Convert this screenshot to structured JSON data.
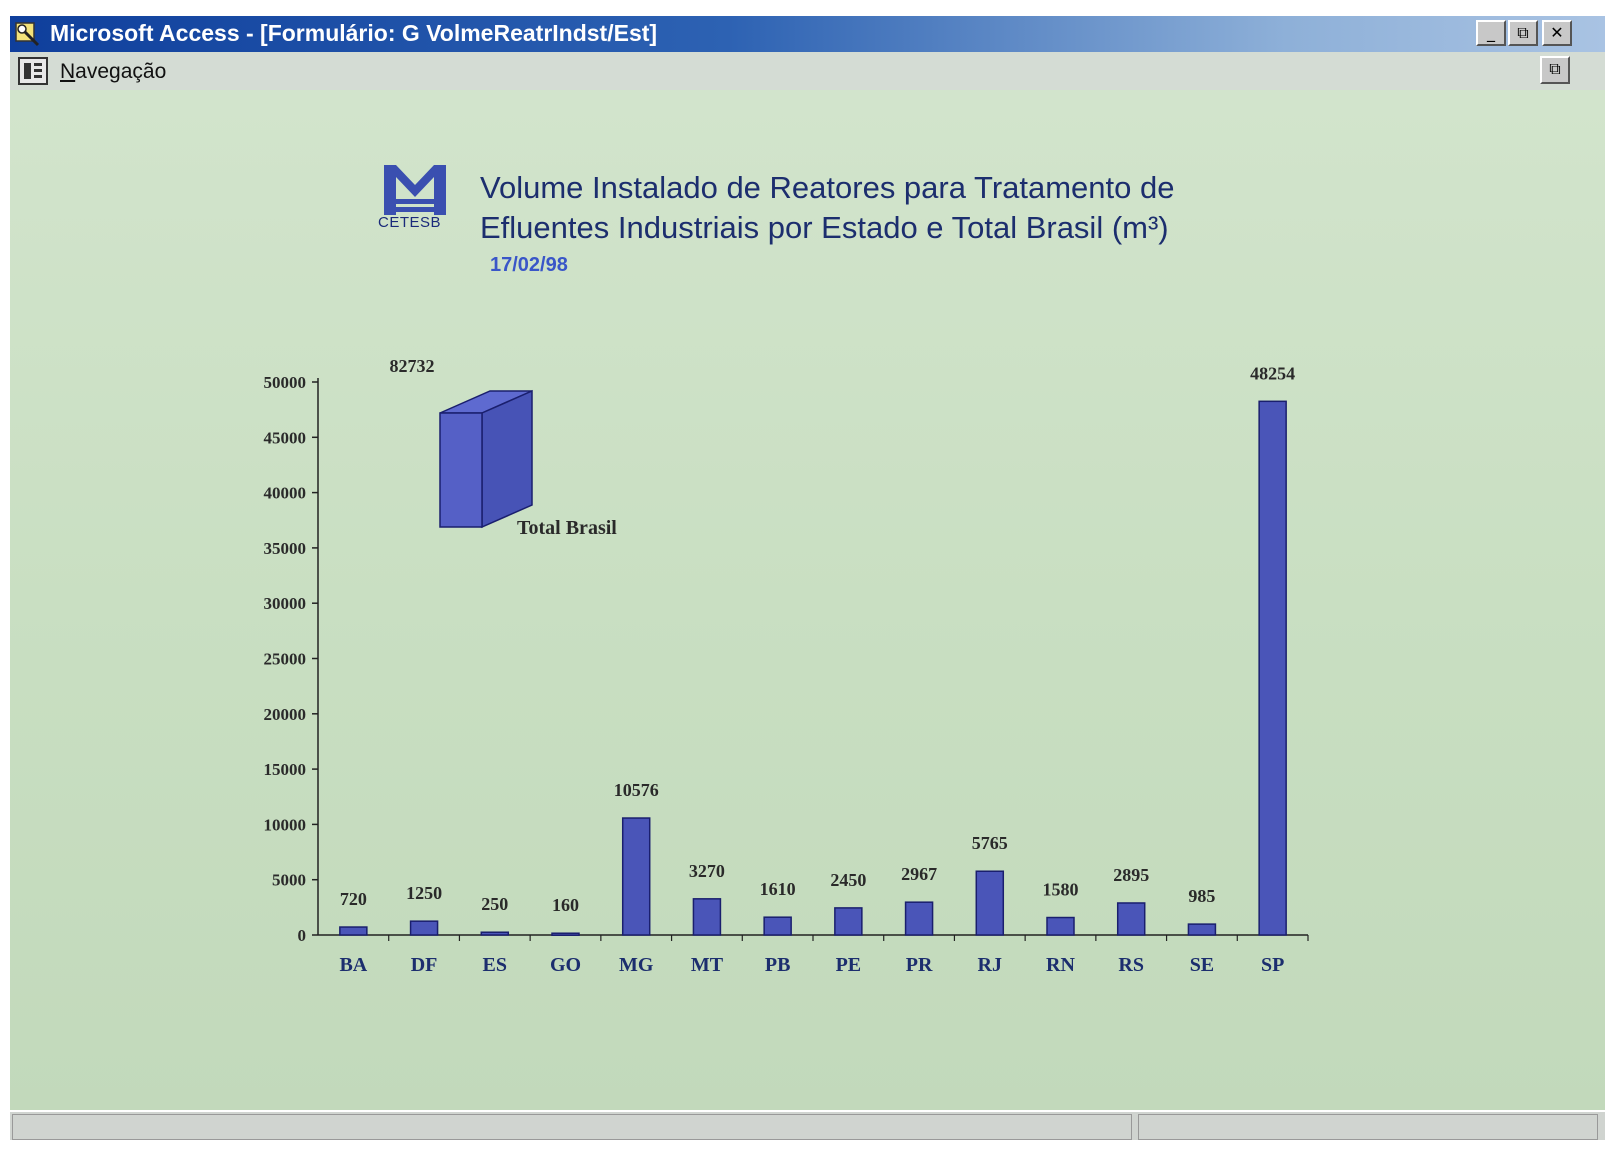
{
  "window": {
    "title": "Microsoft Access - [Formulário: G VolmeReatrIndst/Est]",
    "minimize_glyph": "_",
    "restore_glyph": "⧉",
    "close_glyph": "✕"
  },
  "menu": {
    "icon": "form-view-icon",
    "nav_first": "N",
    "nav_rest": "avegação",
    "doc_restore_glyph": "⧉"
  },
  "logo": {
    "label": "CETESB",
    "icon": "cetesb-logo-icon"
  },
  "chart": {
    "title_line1": "Volume Instalado de Reatores para Tratamento de",
    "title_line2": "Efluentes Industriais por Estado e Total Brasil (m³)",
    "date": "17/02/98"
  },
  "colors": {
    "bar_fill": "#4a55b8",
    "bar_stroke": "#1a1f6e",
    "title_text": "#1c2e6e",
    "date_text": "#3a56c8",
    "background": "#c9dfc2"
  },
  "chart_data": {
    "type": "bar",
    "title": "Volume Instalado de Reatores para Tratamento de Efluentes Industriais por Estado e Total Brasil (m³)",
    "categories": [
      "BA",
      "DF",
      "ES",
      "GO",
      "MG",
      "MT",
      "PB",
      "PE",
      "PR",
      "RJ",
      "RN",
      "RS",
      "SE",
      "SP"
    ],
    "values": [
      720,
      1250,
      250,
      160,
      10576,
      3270,
      1610,
      2450,
      2967,
      5765,
      1580,
      2895,
      985,
      48254
    ],
    "value_labels": [
      "720",
      "1250",
      "250",
      "160",
      "10576",
      "3270",
      "1610",
      "2450",
      "2967",
      "5765",
      "1580",
      "2895",
      "985",
      "48254"
    ],
    "yticks": [
      0,
      5000,
      10000,
      15000,
      20000,
      25000,
      30000,
      35000,
      40000,
      45000,
      50000
    ],
    "ylim": [
      0,
      50000
    ],
    "grid": false,
    "total": {
      "label": "Total Brasil",
      "value": 82732,
      "value_label": "82732"
    }
  }
}
